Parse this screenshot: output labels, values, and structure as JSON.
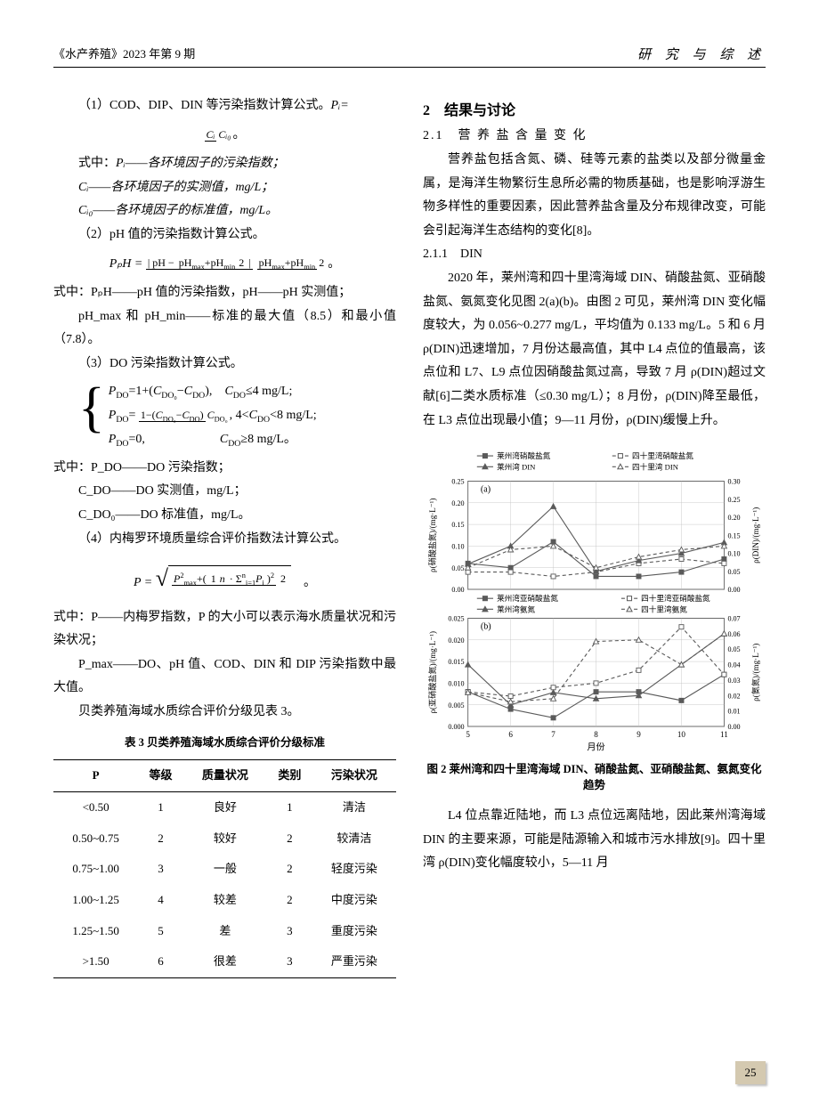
{
  "header": {
    "left": "《水产养殖》2023 年第 9 期",
    "right": "研 究 与 综 述"
  },
  "leftcol": {
    "p1_a": "（1）COD、DIP、DIN 等污染指数计算公式。",
    "p1_b": "Pᵢ=",
    "frac1_num": "Cᵢ",
    "frac1_den": "Cᵢ₀",
    "def_head": "式中：",
    "def1": "Pᵢ——各环境因子的污染指数；",
    "def2": "Cᵢ——各环境因子的实测值，mg/L；",
    "def3": "Cᵢ₀——各环境因子的标准值，mg/L。",
    "p2": "（2）pH 值的污染指数计算公式。",
    "pph_lhs": "PₚH =",
    "pph_abs_inner_top": "pH − (pH_max+pH_min)/2",
    "pph_abs_inner_bot": "(pH_max+pH_min)/2",
    "def4": "式中：PₚH——pH 值的污染指数，pH——pH 实测值；",
    "def5": "pH_max 和 pH_min——标准的最大值（8.5）和最小值（7.8）。",
    "p3": "（3）DO 污染指数计算公式。",
    "case1": "P_DO=1+(C_DO₀−C_DO),　C_DO≤4 mg/L;",
    "case2_lhs": "P_DO=",
    "case2_frac_n": "1−(C_DO₀−C_DO)",
    "case2_frac_d": "C_DO₀",
    "case2_cond": ", 4<C_DO<8 mg/L;",
    "case3": "P_DO=0,　　　　　C_DO≥8 mg/L。",
    "def6": "式中：P_DO——DO 污染指数；",
    "def7": "C_DO——DO 实测值，mg/L；",
    "def8": "C_DO₀——DO 标准值，mg/L。",
    "p4": "（4）内梅罗环境质量综合评价指数法计算公式。",
    "nemerow_lhs": "P = ",
    "nemerow_body_num": "P²_max+( 1/n · Σⁿᵢ₌₁Pᵢ )²",
    "nemerow_body_den": "2",
    "def9": "式中：P——内梅罗指数，P 的大小可以表示海水质量状况和污染状况；",
    "def10": "P_max——DO、pH 值、COD、DIN 和 DIP 污染指数中最大值。",
    "p5": "贝类养殖海域水质综合评价分级见表 3。",
    "table_title": "表 3 贝类养殖海域水质综合评价分级标准",
    "table": {
      "headers": [
        "P",
        "等级",
        "质量状况",
        "类别",
        "污染状况"
      ],
      "rows": [
        [
          "<0.50",
          "1",
          "良好",
          "1",
          "清洁"
        ],
        [
          "0.50~0.75",
          "2",
          "较好",
          "2",
          "较清洁"
        ],
        [
          "0.75~1.00",
          "3",
          "一般",
          "2",
          "轻度污染"
        ],
        [
          "1.00~1.25",
          "4",
          "较差",
          "2",
          "中度污染"
        ],
        [
          "1.25~1.50",
          "5",
          "差",
          "3",
          "重度污染"
        ],
        [
          ">1.50",
          "6",
          "很差",
          "3",
          "严重污染"
        ]
      ]
    }
  },
  "rightcol": {
    "sec2": "2　结果与讨论",
    "sec2_1": "2.1　营 养 盐 含 量 变 化",
    "para1": "营养盐包括含氮、磷、硅等元素的盐类以及部分微量金属，是海洋生物繁衍生息所必需的物质基础，也是影响浮游生物多样性的重要因素，因此营养盐含量及分布规律改变，可能会引起海洋生态结构的变化[8]。",
    "sec2_1_1": "2.1.1　DIN",
    "para2": "2020 年，莱州湾和四十里湾海域 DIN、硝酸盐氮、亚硝酸盐氮、氨氮变化见图 2(a)(b)。由图 2 可见，莱州湾 DIN 变化幅度较大，为 0.056~0.277 mg/L，平均值为 0.133 mg/L。5 和 6 月 ρ(DIN)迅速增加，7 月份达最高值，其中 L4 点位的值最高，该点位和 L7、L9 点位因硝酸盐氮过高，导致 7 月 ρ(DIN)超过文献[6]二类水质标准（≤0.30 mg/L）；8 月份，ρ(DIN)降至最低，在 L3 点位出现最小值；9—11 月份，ρ(DIN)缓慢上升。",
    "fig2_caption": "图 2 莱州湾和四十里湾海域 DIN、硝酸盐氮、亚硝酸盐氮、氨氮变化趋势",
    "para3": "L4 位点靠近陆地，而 L3 点位远离陆地，因此莱州湾海域 DIN 的主要来源，可能是陆源输入和城市污水排放[9]。四十里湾 ρ(DIN)变化幅度较小，5—11 月"
  },
  "chart": {
    "legend_a": [
      "莱州湾硝酸盐氮",
      "四十里湾硝酸盐氮",
      "莱州湾 DIN",
      "四十里湾 DIN"
    ],
    "legend_b": [
      "莱州湾亚硝酸盐氮",
      "四十里湾亚硝酸盐氮",
      "莱州湾氨氮",
      "四十里湾氨氮"
    ],
    "panel_a_label": "(a)",
    "panel_b_label": "(b)",
    "x_label": "月份",
    "y_a_left": "ρ(硝酸盐氮)/(mg·L⁻¹)",
    "y_a_right": "ρ(DIN)/(mg·L⁻¹)",
    "y_b_left": "ρ(亚硝酸盐氮)/(mg·L⁻¹)",
    "y_b_right": "ρ(氨氮)/(mg·L⁻¹)",
    "x_ticks": [
      5,
      6,
      7,
      8,
      9,
      10,
      11
    ],
    "a_left_ticks": [
      0,
      0.05,
      0.1,
      0.15,
      0.2,
      0.25
    ],
    "a_right_ticks": [
      0,
      0.05,
      0.1,
      0.15,
      0.2,
      0.25,
      0.3
    ],
    "b_left_ticks": [
      0,
      0.005,
      0.01,
      0.015,
      0.02,
      0.025
    ],
    "b_right_ticks": [
      0,
      0.01,
      0.02,
      0.03,
      0.04,
      0.05,
      0.06,
      0.07
    ],
    "colors": {
      "series": "#5a5a5a",
      "grid": "#bfbfbf",
      "axis": "#000000",
      "text": "#000000"
    },
    "a": {
      "lz_no3": [
        0.06,
        0.05,
        0.11,
        0.03,
        0.03,
        0.04,
        0.07
      ],
      "ssl_no3": [
        0.04,
        0.04,
        0.03,
        0.04,
        0.06,
        0.07,
        0.06
      ],
      "lz_din": [
        0.07,
        0.12,
        0.23,
        0.05,
        0.08,
        0.1,
        0.13
      ],
      "ssl_din": [
        0.06,
        0.11,
        0.12,
        0.06,
        0.09,
        0.11,
        0.12
      ]
    },
    "b": {
      "lz_no2": [
        0.008,
        0.004,
        0.002,
        0.008,
        0.008,
        0.006,
        0.012
      ],
      "ssl_no2": [
        0.008,
        0.007,
        0.009,
        0.01,
        0.013,
        0.023,
        0.012
      ],
      "lz_nh4": [
        0.04,
        0.014,
        0.022,
        0.018,
        0.02,
        0.04,
        0.06
      ],
      "ssl_nh4": [
        0.022,
        0.016,
        0.018,
        0.055,
        0.056,
        0.04,
        0.06
      ]
    }
  },
  "page_number": "25"
}
